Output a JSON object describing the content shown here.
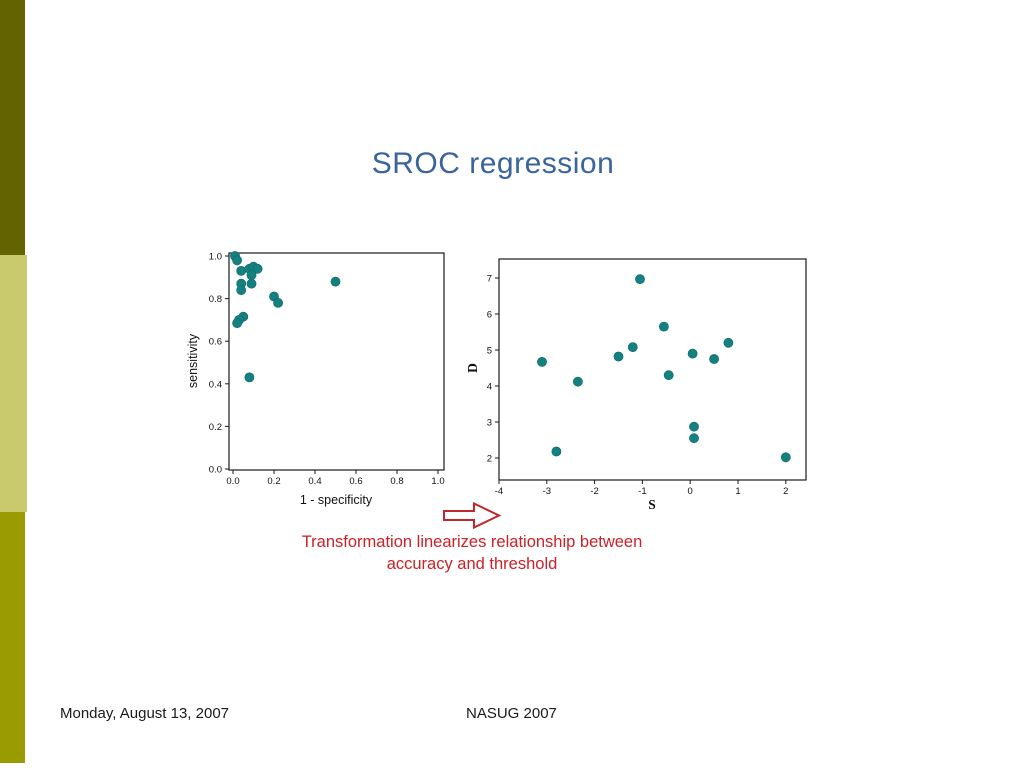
{
  "title": "SROC regression",
  "caption": {
    "line1": "Transformation linearizes relationship between",
    "line2": "accuracy and threshold"
  },
  "footer": {
    "date": "Monday, August 13, 2007",
    "event": "NASUG 2007"
  },
  "colors": {
    "title_blue": "#39659c",
    "caption_red": "#cc2127",
    "point_teal": "#158080",
    "point_edge": "#0d6a66",
    "arrow_red": "#c0272d",
    "sidebar_dark": "#636400",
    "sidebar_light": "#c9ca6e",
    "sidebar_olive": "#9a9b00"
  },
  "chart_data": [
    {
      "type": "scatter",
      "title": "",
      "xlabel": "1 - specificity",
      "ylabel": "sensitivity",
      "xlim": [
        0,
        1.05
      ],
      "ylim": [
        0,
        1.03
      ],
      "grid": false,
      "legend": "none",
      "xticks": [
        0.0,
        0.2,
        0.4,
        0.6,
        0.8,
        1.0
      ],
      "xtick_labels": [
        "0.0",
        "0.2",
        "0.4",
        "0.6",
        "0.8",
        "1.0"
      ],
      "yticks": [
        0.0,
        0.2,
        0.4,
        0.6,
        0.8,
        1.0
      ],
      "ytick_labels": [
        "0.0",
        "0.2",
        "0.4",
        "0.6",
        "0.8",
        "1.0"
      ],
      "points": [
        [
          0.01,
          1.0
        ],
        [
          0.02,
          0.98
        ],
        [
          0.04,
          0.93
        ],
        [
          0.08,
          0.94
        ],
        [
          0.1,
          0.95
        ],
        [
          0.12,
          0.94
        ],
        [
          0.09,
          0.91
        ],
        [
          0.04,
          0.87
        ],
        [
          0.09,
          0.87
        ],
        [
          0.04,
          0.84
        ],
        [
          0.2,
          0.81
        ],
        [
          0.22,
          0.78
        ],
        [
          0.05,
          0.715
        ],
        [
          0.03,
          0.7
        ],
        [
          0.02,
          0.685
        ],
        [
          0.5,
          0.88
        ],
        [
          0.08,
          0.43
        ]
      ]
    },
    {
      "type": "scatter",
      "title": "",
      "xlabel": "S",
      "ylabel": "D",
      "xlim": [
        -4,
        2.4
      ],
      "ylim": [
        1.4,
        7.5
      ],
      "grid": false,
      "legend": "none",
      "xticks": [
        -4,
        -3,
        -2,
        -1,
        0,
        1,
        2
      ],
      "xtick_labels": [
        "-4",
        "-3",
        "-2",
        "-1",
        "0",
        "1",
        "2"
      ],
      "yticks": [
        2,
        3,
        4,
        5,
        6,
        7
      ],
      "ytick_labels": [
        "2",
        "3",
        "4",
        "5",
        "6",
        "7"
      ],
      "points": [
        [
          -3.1,
          4.67
        ],
        [
          -2.8,
          2.18
        ],
        [
          -2.35,
          4.12
        ],
        [
          -1.5,
          4.82
        ],
        [
          -1.2,
          5.08
        ],
        [
          -1.05,
          6.97
        ],
        [
          -0.55,
          5.65
        ],
        [
          -0.45,
          4.3
        ],
        [
          0.05,
          4.9
        ],
        [
          0.08,
          2.87
        ],
        [
          0.08,
          2.55
        ],
        [
          0.5,
          4.75
        ],
        [
          0.8,
          5.2
        ],
        [
          2.0,
          2.02
        ]
      ]
    }
  ]
}
